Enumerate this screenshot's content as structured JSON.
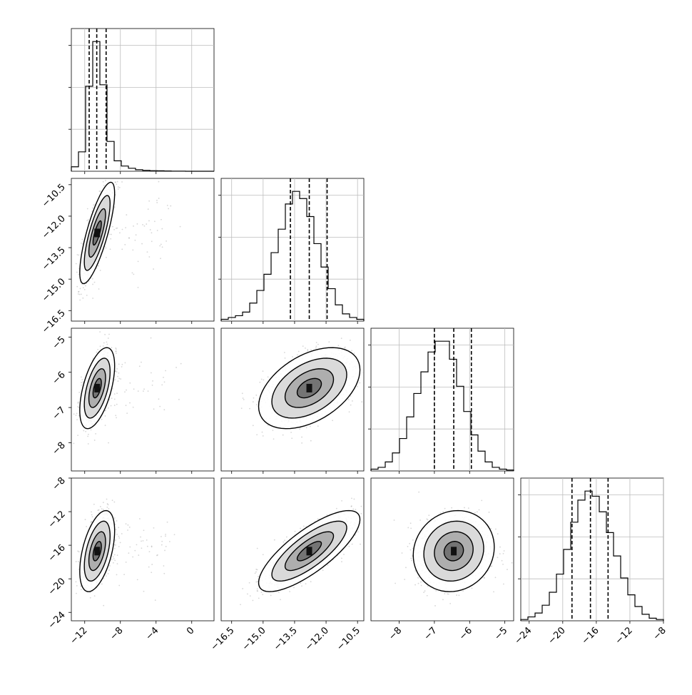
{
  "chart_data": {
    "type": "corner",
    "title": "",
    "parameters": [
      {
        "index": 0,
        "range": [
          -13.5,
          2.5
        ],
        "ticks": [
          "−12",
          "−8",
          "−4",
          "0"
        ],
        "tick_values": [
          -12,
          -8,
          -4,
          0
        ],
        "quantiles": [
          -11.5,
          -10.65,
          -9.6
        ]
      },
      {
        "index": 1,
        "range": [
          -17.0,
          -10.2
        ],
        "ticks": [
          "−16.5",
          "−15.0",
          "−13.5",
          "−12.0",
          "−10.5"
        ],
        "tick_values": [
          -16.5,
          -15.0,
          -13.5,
          -12.0,
          -10.5
        ],
        "quantiles": [
          -13.7,
          -12.8,
          -11.95
        ]
      },
      {
        "index": 2,
        "range": [
          -8.8,
          -4.75
        ],
        "ticks": [
          "−8",
          "−7",
          "−6",
          "−5"
        ],
        "tick_values": [
          -8,
          -7,
          -6,
          -5
        ],
        "quantiles": [
          -7.0,
          -6.45,
          -5.95
        ]
      },
      {
        "index": 3,
        "range": [
          -25.0,
          -8.0
        ],
        "ticks": [
          "−24",
          "−20",
          "−16",
          "−12",
          "−8"
        ],
        "tick_values": [
          -24,
          -20,
          -16,
          -12,
          -8
        ],
        "quantiles": [
          -18.9,
          -16.7,
          -14.6
        ]
      }
    ],
    "histograms": [
      {
        "param": 0,
        "edges_from": -13.5,
        "bin_width": 0.8,
        "values": [
          0.03,
          0.13,
          0.57,
          0.87,
          0.58,
          0.2,
          0.07,
          0.035,
          0.02,
          0.01,
          0.006,
          0.004,
          0.003,
          0.002,
          0.001,
          0.001,
          0.0,
          0.0,
          0.0,
          0.0
        ]
      },
      {
        "param": 1,
        "edges_from": -17.0,
        "bin_width": 0.34,
        "values": [
          0.01,
          0.02,
          0.03,
          0.05,
          0.1,
          0.17,
          0.26,
          0.38,
          0.51,
          0.65,
          0.72,
          0.68,
          0.58,
          0.43,
          0.3,
          0.18,
          0.09,
          0.04,
          0.02,
          0.01
        ]
      },
      {
        "param": 2,
        "edges_from": -8.8,
        "bin_width": 0.2025,
        "values": [
          0.01,
          0.02,
          0.05,
          0.1,
          0.18,
          0.3,
          0.43,
          0.55,
          0.66,
          0.72,
          0.72,
          0.62,
          0.47,
          0.33,
          0.2,
          0.11,
          0.05,
          0.02,
          0.01,
          0.005
        ]
      },
      {
        "param": 3,
        "edges_from": -25.0,
        "bin_width": 0.85,
        "values": [
          0.01,
          0.03,
          0.06,
          0.12,
          0.22,
          0.36,
          0.55,
          0.76,
          0.93,
          1.0,
          0.96,
          0.84,
          0.68,
          0.5,
          0.33,
          0.2,
          0.11,
          0.05,
          0.02,
          0.01
        ]
      }
    ],
    "pairs": [
      {
        "x": 0,
        "y": 1,
        "center": [
          -10.6,
          -12.8
        ],
        "sigma": [
          0.85,
          1.05
        ],
        "corr": 0.78
      },
      {
        "x": 0,
        "y": 2,
        "center": [
          -10.6,
          -6.45
        ],
        "sigma": [
          0.85,
          0.5
        ],
        "corr": 0.55
      },
      {
        "x": 0,
        "y": 3,
        "center": [
          -10.6,
          -16.7
        ],
        "sigma": [
          0.85,
          2.1
        ],
        "corr": 0.5
      },
      {
        "x": 1,
        "y": 2,
        "center": [
          -12.8,
          -6.45
        ],
        "sigma": [
          1.05,
          0.5
        ],
        "corr": 0.45
      },
      {
        "x": 1,
        "y": 3,
        "center": [
          -12.8,
          -16.7
        ],
        "sigma": [
          1.05,
          2.1
        ],
        "corr": 0.78
      },
      {
        "x": 2,
        "y": 3,
        "center": [
          -6.45,
          -16.7
        ],
        "sigma": [
          0.5,
          2.1
        ],
        "corr": 0.1
      }
    ]
  }
}
